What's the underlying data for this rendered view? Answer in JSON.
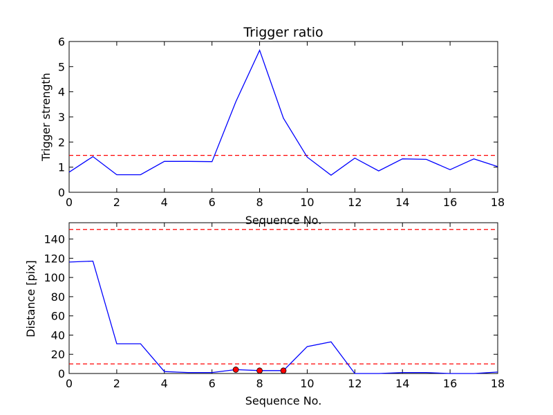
{
  "chart_data": [
    {
      "type": "line",
      "title": "Trigger ratio",
      "xlabel": "Sequence No.",
      "ylabel": "Trigger strength",
      "xlim": [
        0,
        18
      ],
      "ylim": [
        0,
        6
      ],
      "xticks": [
        0,
        2,
        4,
        6,
        8,
        10,
        12,
        14,
        16,
        18
      ],
      "yticks": [
        0,
        1,
        2,
        3,
        4,
        5,
        6
      ],
      "grid": false,
      "series": [
        {
          "color": "#0000ff",
          "style": "solid",
          "x": [
            0,
            1,
            2,
            3,
            4,
            5,
            6,
            7,
            8,
            9,
            10,
            11,
            12,
            13,
            14,
            15,
            16,
            17,
            18
          ],
          "y": [
            0.8,
            1.42,
            0.7,
            0.7,
            1.23,
            1.23,
            1.22,
            3.6,
            5.65,
            2.95,
            1.4,
            0.68,
            1.36,
            0.85,
            1.33,
            1.31,
            0.9,
            1.33,
            1.02
          ]
        }
      ],
      "hlines": [
        {
          "y": 1.47,
          "color": "#ff0000",
          "style": "dashed"
        }
      ],
      "markers": []
    },
    {
      "type": "line",
      "title": "",
      "xlabel": "Sequence No.",
      "ylabel": "Distance [pix]",
      "xlim": [
        0,
        18
      ],
      "ylim": [
        0,
        157
      ],
      "xticks": [
        0,
        2,
        4,
        6,
        8,
        10,
        12,
        14,
        16,
        18
      ],
      "yticks": [
        0,
        20,
        40,
        60,
        80,
        100,
        120,
        140
      ],
      "grid": false,
      "series": [
        {
          "color": "#0000ff",
          "style": "solid",
          "x": [
            0,
            1,
            2,
            3,
            4,
            5,
            6,
            7,
            8,
            9,
            10,
            11,
            12,
            13,
            14,
            15,
            16,
            17,
            18
          ],
          "y": [
            116,
            117,
            31,
            31,
            2,
            1,
            1,
            4,
            3,
            3,
            28,
            33,
            0,
            0,
            1,
            1,
            0,
            0,
            1.5
          ]
        }
      ],
      "hlines": [
        {
          "y": 150,
          "color": "#ff0000",
          "style": "dashed"
        },
        {
          "y": 10,
          "color": "#ff0000",
          "style": "dashed"
        }
      ],
      "markers": [
        {
          "x": 7,
          "y": 4,
          "color": "#ff0000"
        },
        {
          "x": 8,
          "y": 3,
          "color": "#ff0000"
        },
        {
          "x": 9,
          "y": 3,
          "color": "#ff0000"
        }
      ]
    }
  ]
}
